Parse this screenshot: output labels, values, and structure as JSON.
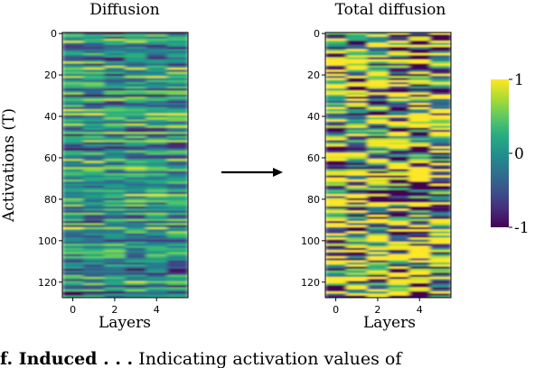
{
  "chart_data": [
    {
      "type": "heatmap",
      "title": "Diffusion",
      "xlabel": "Layers",
      "ylabel": "Activations (T)",
      "x_ticks": [
        "0",
        "2",
        "4"
      ],
      "y_ticks": [
        "0",
        "20",
        "40",
        "60",
        "80",
        "100",
        "120"
      ],
      "xlim": [
        -0.5,
        5.5
      ],
      "ylim": [
        127.5,
        -0.5
      ],
      "rows": 128,
      "cols": 6,
      "value_range": [
        -0.45,
        0.55
      ],
      "colormap": "viridis"
    },
    {
      "type": "heatmap",
      "title": "Total diffusion",
      "xlabel": "Layers",
      "ylabel": "",
      "x_ticks": [
        "0",
        "2",
        "4"
      ],
      "y_ticks": [
        "0",
        "20",
        "40",
        "60",
        "80",
        "100",
        "120"
      ],
      "xlim": [
        -0.5,
        5.5
      ],
      "ylim": [
        127.5,
        -0.5
      ],
      "rows": 128,
      "cols": 6,
      "value_range": [
        -1,
        1
      ],
      "colormap": "viridis"
    }
  ],
  "colorbar": {
    "ticks": [
      "1",
      "0",
      "-1"
    ],
    "range": [
      -1,
      1
    ]
  },
  "arrow": {
    "direction": "right"
  },
  "caption": {
    "bold": "f. Induced . . .",
    "rest": "Indicating activation values of"
  }
}
